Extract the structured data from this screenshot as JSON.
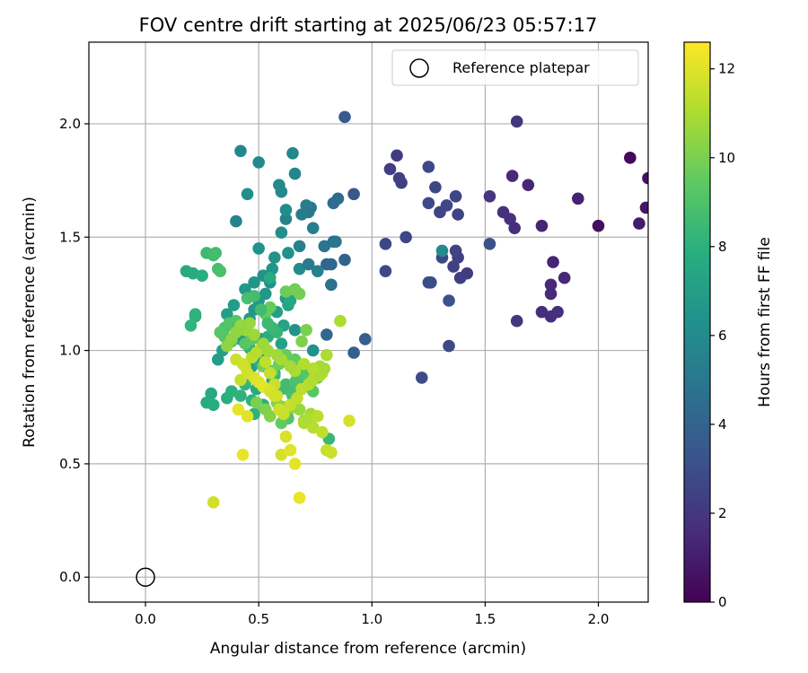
{
  "chart_data": {
    "type": "scatter",
    "title": "FOV centre drift starting at 2025/06/23 05:57:17",
    "xlabel": "Angular distance from reference (arcmin)",
    "ylabel": "Rotation from reference (arcmin)",
    "xlim": [
      -0.25,
      2.22
    ],
    "ylim": [
      -0.11,
      2.36
    ],
    "x_ticks": [
      0.0,
      0.5,
      1.0,
      1.5,
      2.0
    ],
    "y_ticks": [
      0.0,
      0.5,
      1.0,
      1.5,
      2.0
    ],
    "x_tick_labels": [
      "0.0",
      "0.5",
      "1.0",
      "1.5",
      "2.0"
    ],
    "y_tick_labels": [
      "0.0",
      "0.5",
      "1.0",
      "1.5",
      "2.0"
    ],
    "grid": true,
    "legend": {
      "placement": "top-right",
      "entries": [
        {
          "label": "Reference platepar",
          "marker": "open-circle"
        }
      ]
    },
    "reference_point": {
      "x": 0.0,
      "y": 0.0
    },
    "colorbar": {
      "label": "Hours from first FF file",
      "range": [
        0,
        12.6
      ],
      "ticks": [
        0,
        2,
        4,
        6,
        8,
        10,
        12
      ],
      "tick_labels": [
        "0",
        "2",
        "4",
        "6",
        "8",
        "10",
        "12"
      ],
      "colormap": "viridis"
    },
    "series": [
      {
        "x": [
          2.14,
          2.22,
          2.21,
          2.18,
          2.0,
          1.91,
          1.75,
          1.69,
          1.62,
          1.63,
          1.61,
          1.58,
          1.52,
          1.8,
          1.85,
          1.79,
          1.79,
          1.75,
          1.79,
          1.82,
          1.64,
          1.64,
          1.42,
          1.38,
          1.36,
          1.39,
          1.37,
          1.38,
          1.33,
          1.3,
          1.37,
          1.31,
          1.28,
          1.34,
          1.25,
          1.25,
          1.22,
          1.26,
          1.25,
          1.11,
          1.08,
          1.12,
          1.13,
          1.15,
          1.06,
          1.06,
          1.52,
          1.34,
          0.92,
          0.88
        ],
        "y": [
          1.85,
          1.76,
          1.63,
          1.56,
          1.55,
          1.67,
          1.55,
          1.73,
          1.77,
          1.54,
          1.58,
          1.61,
          1.68,
          1.39,
          1.32,
          1.29,
          1.25,
          1.17,
          1.15,
          1.17,
          1.13,
          2.01,
          1.34,
          1.41,
          1.37,
          1.32,
          1.44,
          1.6,
          1.64,
          1.61,
          1.68,
          1.41,
          1.72,
          1.02,
          1.65,
          1.81,
          0.88,
          1.3,
          1.3,
          1.86,
          1.8,
          1.76,
          1.74,
          1.5,
          1.47,
          1.35,
          1.47,
          1.22,
          1.69,
          2.03
        ],
        "c": [
          0.3,
          0.6,
          0.7,
          0.9,
          0.5,
          1.2,
          1.3,
          1.4,
          1.5,
          1.6,
          1.7,
          1.8,
          1.9,
          1.3,
          1.4,
          1.5,
          1.5,
          1.6,
          1.6,
          1.7,
          2.0,
          2.0,
          2.2,
          2.3,
          2.4,
          2.3,
          2.5,
          2.5,
          2.6,
          2.6,
          2.6,
          2.7,
          2.7,
          2.8,
          2.8,
          2.8,
          2.9,
          2.9,
          3.0,
          2.2,
          2.3,
          2.4,
          2.4,
          2.6,
          2.7,
          2.8,
          3.1,
          3.2,
          3.4,
          3.6
        ]
      },
      {
        "x": [
          0.97,
          0.92,
          0.88,
          0.8,
          0.8,
          0.82,
          0.85,
          0.83,
          0.83,
          0.82,
          0.79,
          0.84,
          0.73,
          0.72,
          0.71,
          0.69,
          0.74,
          0.68,
          0.62,
          0.66,
          0.65,
          0.6,
          0.59,
          0.62,
          0.6,
          0.63,
          0.55,
          0.52,
          0.5,
          0.48,
          0.5,
          0.42,
          0.45,
          0.4,
          0.57,
          0.62,
          0.68,
          0.74,
          0.66,
          0.56,
          0.53,
          0.5,
          0.48,
          0.46,
          0.44,
          0.42,
          0.39,
          0.36,
          0.32,
          0.34,
          0.51,
          0.53,
          0.47,
          0.56,
          0.58,
          0.6,
          0.61,
          0.63,
          0.64,
          0.55,
          0.49,
          0.52,
          0.54,
          0.57,
          0.5,
          0.47,
          0.48,
          0.46,
          0.72,
          0.76,
          1.31,
          0.7
        ],
        "y": [
          1.05,
          0.99,
          1.4,
          1.38,
          1.07,
          1.38,
          1.67,
          1.65,
          1.48,
          1.29,
          1.46,
          1.48,
          1.63,
          1.61,
          1.64,
          1.6,
          1.54,
          1.46,
          1.58,
          1.78,
          1.87,
          1.7,
          1.73,
          1.62,
          1.52,
          1.43,
          1.3,
          1.33,
          1.45,
          1.3,
          1.83,
          1.88,
          1.69,
          1.57,
          1.41,
          1.23,
          1.36,
          1.0,
          1.09,
          1.36,
          1.25,
          1.22,
          1.18,
          1.14,
          1.27,
          1.05,
          1.2,
          1.16,
          0.96,
          1.0,
          1.05,
          0.99,
          0.93,
          0.87,
          1.17,
          1.03,
          1.11,
          1.2,
          1.22,
          1.32,
          0.83,
          0.76,
          1.06,
          0.9,
          0.95,
          0.78,
          0.72,
          1.01,
          1.38,
          1.35,
          1.44,
          0.85
        ],
        "c": [
          3.8,
          3.9,
          4.0,
          4.1,
          4.2,
          4.3,
          4.4,
          4.5,
          4.6,
          4.7,
          4.8,
          4.9,
          5.0,
          5.1,
          5.2,
          5.3,
          5.4,
          5.5,
          5.6,
          5.7,
          5.8,
          5.9,
          6.0,
          6.1,
          6.2,
          6.3,
          6.3,
          6.4,
          6.4,
          6.5,
          5.9,
          5.8,
          6.2,
          5.6,
          6.5,
          6.6,
          6.0,
          6.3,
          6.4,
          6.5,
          6.6,
          6.7,
          6.7,
          6.8,
          6.8,
          6.9,
          6.9,
          7.0,
          7.0,
          7.1,
          6.8,
          6.9,
          7.0,
          7.1,
          7.0,
          7.2,
          7.3,
          7.4,
          7.5,
          7.6,
          7.6,
          7.7,
          7.8,
          7.9,
          7.9,
          8.0,
          8.0,
          8.1,
          5.2,
          5.5,
          6.0,
          7.2
        ]
      },
      {
        "x": [
          0.18,
          0.21,
          0.25,
          0.22,
          0.22,
          0.2,
          0.27,
          0.3,
          0.31,
          0.32,
          0.33,
          0.35,
          0.37,
          0.4,
          0.44,
          0.47,
          0.53,
          0.55,
          0.62,
          0.66,
          0.68,
          0.71,
          0.69,
          0.58,
          0.56,
          0.54,
          0.51,
          0.48,
          0.45,
          0.41,
          0.38,
          0.35,
          0.33,
          0.29,
          0.27,
          0.3,
          0.36,
          0.38,
          0.42,
          0.44,
          0.46,
          0.57,
          0.6,
          0.62,
          0.64,
          0.65,
          0.66,
          0.67,
          0.7,
          0.72,
          0.74,
          0.76,
          0.66,
          0.62,
          0.59,
          0.56,
          0.52,
          0.5,
          0.49,
          0.53,
          0.55,
          0.58,
          0.61,
          0.63,
          0.68,
          0.7,
          0.73,
          0.75,
          0.77,
          0.8,
          0.81,
          0.63,
          0.6
        ],
        "y": [
          1.35,
          1.34,
          1.33,
          1.15,
          1.16,
          1.11,
          1.43,
          1.42,
          1.43,
          1.36,
          1.35,
          1.1,
          1.12,
          1.13,
          1.03,
          1.05,
          1.16,
          1.19,
          1.26,
          1.27,
          1.25,
          1.09,
          1.04,
          1.08,
          1.1,
          1.12,
          1.18,
          1.24,
          1.23,
          1.11,
          1.04,
          1.06,
          1.08,
          0.81,
          0.77,
          0.76,
          0.79,
          0.82,
          0.8,
          0.85,
          0.88,
          0.89,
          0.83,
          0.85,
          0.82,
          0.8,
          0.86,
          0.88,
          0.9,
          0.87,
          0.82,
          0.88,
          0.96,
          0.98,
          0.94,
          0.91,
          0.93,
          0.86,
          0.77,
          0.74,
          0.71,
          0.77,
          0.75,
          0.73,
          0.74,
          0.69,
          0.72,
          0.9,
          0.93,
          0.98,
          0.61,
          0.7,
          0.68
        ],
        "c": [
          7.6,
          7.7,
          7.8,
          8.0,
          8.1,
          8.2,
          8.5,
          8.6,
          8.7,
          8.8,
          8.9,
          9.0,
          9.1,
          9.2,
          9.3,
          9.4,
          9.5,
          9.6,
          9.7,
          9.8,
          9.9,
          10.0,
          10.1,
          8.3,
          8.4,
          8.5,
          8.6,
          8.7,
          8.8,
          8.9,
          9.0,
          9.1,
          9.2,
          7.6,
          7.7,
          7.8,
          7.9,
          8.0,
          8.1,
          8.2,
          8.3,
          8.4,
          8.5,
          8.6,
          8.7,
          8.8,
          8.9,
          9.0,
          9.1,
          9.2,
          9.3,
          9.4,
          9.5,
          9.6,
          9.7,
          9.8,
          9.9,
          10.0,
          10.0,
          10.1,
          10.2,
          10.3,
          10.4,
          10.5,
          10.6,
          10.7,
          10.8,
          10.8,
          10.9,
          11.0,
          8.4,
          9.1,
          9.5
        ]
      },
      {
        "x": [
          0.3,
          0.42,
          0.44,
          0.47,
          0.49,
          0.51,
          0.53,
          0.55,
          0.57,
          0.58,
          0.6,
          0.62,
          0.64,
          0.66,
          0.68,
          0.7,
          0.72,
          0.74,
          0.76,
          0.78,
          0.8,
          0.82,
          0.86,
          0.9,
          0.78,
          0.74,
          0.7,
          0.66,
          0.64,
          0.6,
          0.58,
          0.54,
          0.52,
          0.48,
          0.46,
          0.44,
          0.42,
          0.4,
          0.38,
          0.36,
          0.4,
          0.43,
          0.45,
          0.48,
          0.5,
          0.52,
          0.55,
          0.57,
          0.59,
          0.61,
          0.64,
          0.67,
          0.69,
          0.72,
          0.74,
          0.77,
          0.79,
          0.45,
          0.41,
          0.43
        ],
        "y": [
          0.33,
          0.87,
          0.93,
          0.97,
          0.99,
          1.01,
          0.95,
          0.9,
          0.85,
          0.8,
          0.54,
          0.62,
          0.56,
          0.5,
          0.35,
          0.68,
          0.7,
          0.66,
          0.71,
          0.64,
          0.56,
          0.55,
          1.13,
          0.69,
          0.9,
          0.92,
          0.94,
          0.91,
          0.93,
          0.96,
          0.98,
          1.0,
          1.03,
          1.07,
          1.12,
          1.09,
          1.11,
          1.08,
          1.05,
          1.02,
          0.96,
          0.94,
          0.9,
          0.88,
          0.86,
          0.84,
          0.82,
          0.8,
          0.74,
          0.72,
          0.76,
          0.79,
          0.83,
          0.85,
          0.87,
          0.89,
          0.92,
          0.71,
          0.74,
          0.54
        ],
        "c": [
          11.7,
          11.5,
          11.4,
          11.3,
          11.2,
          11.3,
          11.4,
          11.5,
          11.6,
          11.7,
          11.8,
          11.9,
          12.0,
          12.1,
          12.2,
          11.1,
          11.0,
          11.2,
          11.3,
          11.4,
          11.5,
          11.6,
          11.0,
          11.8,
          11.3,
          11.2,
          11.1,
          11.0,
          10.9,
          10.9,
          10.8,
          10.8,
          10.7,
          10.7,
          10.6,
          10.6,
          10.5,
          10.5,
          10.4,
          10.4,
          11.6,
          11.7,
          11.8,
          11.9,
          12.0,
          12.1,
          11.9,
          11.8,
          11.7,
          11.6,
          11.5,
          11.4,
          11.3,
          11.2,
          11.1,
          11.0,
          10.9,
          12.0,
          12.1,
          12.2
        ]
      }
    ]
  }
}
